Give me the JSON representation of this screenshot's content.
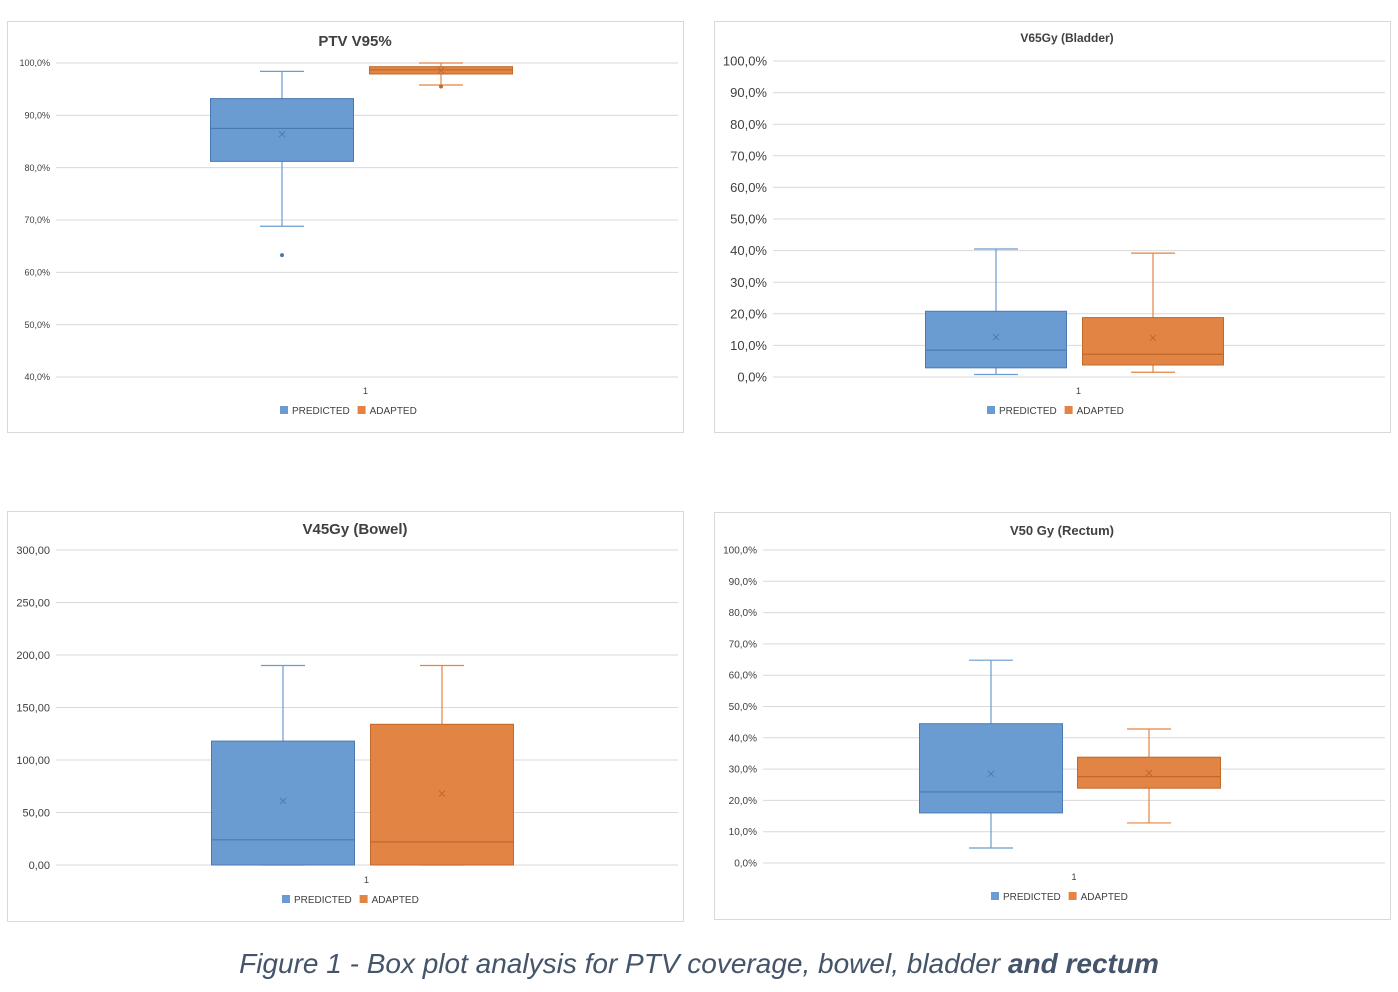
{
  "colors": {
    "predicted": "#6a9bd1",
    "adapted": "#e28443",
    "grid": "#d9d9d9",
    "text": "#404040"
  },
  "caption": {
    "main": "Figure 1 - Box plot analysis for PTV coverage, bowel, bladder ",
    "emph": "and rectum"
  },
  "chart_data": [
    {
      "type": "box",
      "title": "PTV V95%",
      "categories": [
        "1"
      ],
      "ylim": [
        40,
        100
      ],
      "ytick_step": 10,
      "ytick_labels": [
        "40,0%",
        "50,0%",
        "60,0%",
        "70,0%",
        "80,0%",
        "90,0%",
        "100,0%"
      ],
      "grid": true,
      "legend": "bottom",
      "series": [
        {
          "name": "PREDICTED",
          "min": 68.8,
          "q1": 81.2,
          "median": 87.5,
          "q3": 93.2,
          "max": 98.4,
          "mean": 86.4,
          "outliers": [
            63.3
          ]
        },
        {
          "name": "ADAPTED",
          "min": 95.8,
          "q1": 97.9,
          "median": 98.7,
          "q3": 99.3,
          "max": 100.0,
          "mean": 98.6,
          "outliers": [
            95.5
          ]
        }
      ]
    },
    {
      "type": "box",
      "title": "V65Gy (Bladder)",
      "categories": [
        "1"
      ],
      "ylim": [
        0,
        100
      ],
      "ytick_step": 10,
      "ytick_labels": [
        "0,0%",
        "10,0%",
        "20,0%",
        "30,0%",
        "40,0%",
        "50,0%",
        "60,0%",
        "70,0%",
        "80,0%",
        "90,0%",
        "100,0%"
      ],
      "grid": true,
      "legend": "bottom",
      "series": [
        {
          "name": "PREDICTED",
          "min": 0.8,
          "q1": 2.9,
          "median": 8.5,
          "q3": 20.8,
          "max": 40.5,
          "mean": 12.6,
          "outliers": []
        },
        {
          "name": "ADAPTED",
          "min": 1.5,
          "q1": 3.8,
          "median": 7.2,
          "q3": 18.8,
          "max": 39.2,
          "mean": 12.4,
          "outliers": []
        }
      ]
    },
    {
      "type": "box",
      "title": "V45Gy (Bowel)",
      "categories": [
        "1"
      ],
      "ylim": [
        0,
        300
      ],
      "ytick_step": 50,
      "ytick_labels": [
        "0,00",
        "50,00",
        "100,00",
        "150,00",
        "200,00",
        "250,00",
        "300,00"
      ],
      "grid": true,
      "legend": "bottom",
      "series": [
        {
          "name": "PREDICTED",
          "min": 0,
          "q1": 0,
          "median": 24,
          "q3": 118,
          "max": 190,
          "mean": 61,
          "outliers": []
        },
        {
          "name": "ADAPTED",
          "min": 0,
          "q1": 0,
          "median": 22,
          "q3": 134,
          "max": 190,
          "mean": 68,
          "outliers": []
        }
      ]
    },
    {
      "type": "box",
      "title": "V50 Gy (Rectum)",
      "categories": [
        "1"
      ],
      "ylim": [
        0,
        100
      ],
      "ytick_step": 10,
      "ytick_labels": [
        "0,0%",
        "10,0%",
        "20,0%",
        "30,0%",
        "40,0%",
        "50,0%",
        "60,0%",
        "70,0%",
        "80,0%",
        "90,0%",
        "100,0%"
      ],
      "grid": true,
      "legend": "bottom",
      "series": [
        {
          "name": "PREDICTED",
          "min": 4.8,
          "q1": 16.0,
          "median": 22.7,
          "q3": 44.5,
          "max": 64.8,
          "mean": 28.5,
          "outliers": []
        },
        {
          "name": "ADAPTED",
          "min": 12.8,
          "q1": 23.9,
          "median": 27.6,
          "q3": 33.8,
          "max": 42.8,
          "mean": 28.8,
          "outliers": []
        }
      ]
    }
  ]
}
